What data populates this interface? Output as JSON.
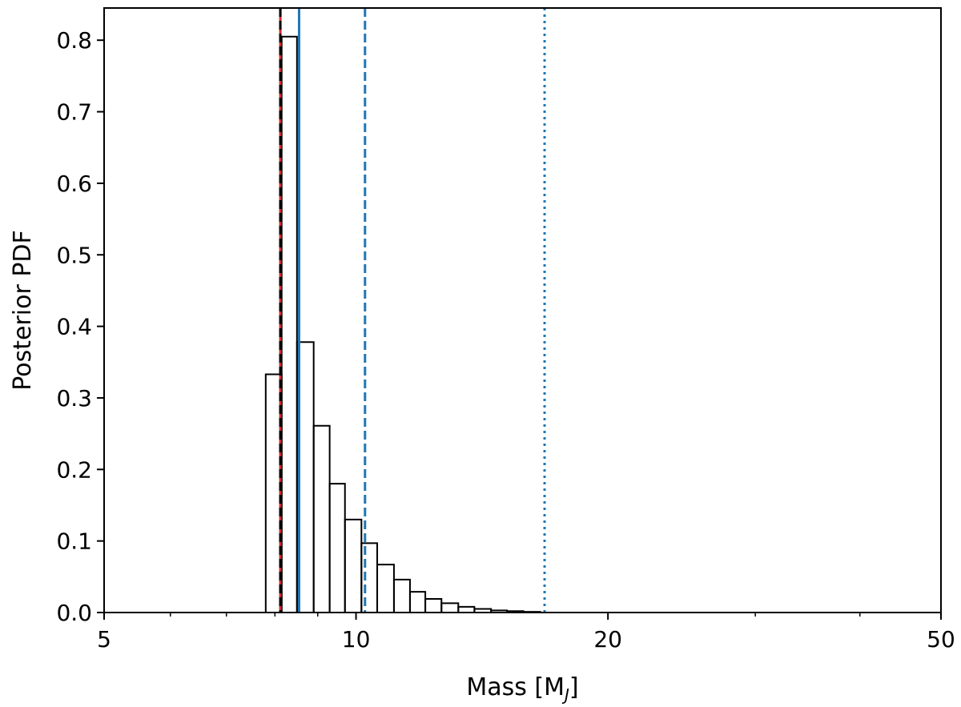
{
  "chart_data": {
    "type": "histogram",
    "title": "",
    "xlabel": "Mass [M",
    "xlabel_sub": "J",
    "xlabel_close": "]",
    "ylabel": "Posterior PDF",
    "xscale": "log",
    "xlim": [
      5,
      50
    ],
    "ylim": [
      0,
      0.845
    ],
    "xticks": [
      {
        "value": 5,
        "label": "5"
      },
      {
        "value": 10,
        "label": "10"
      },
      {
        "value": 20,
        "label": "20"
      },
      {
        "value": 50,
        "label": "50"
      }
    ],
    "yticks": [
      {
        "value": 0.0,
        "label": "0.0"
      },
      {
        "value": 0.1,
        "label": "0.1"
      },
      {
        "value": 0.2,
        "label": "0.2"
      },
      {
        "value": 0.3,
        "label": "0.3"
      },
      {
        "value": 0.4,
        "label": "0.4"
      },
      {
        "value": 0.5,
        "label": "0.5"
      },
      {
        "value": 0.6,
        "label": "0.6"
      },
      {
        "value": 0.7,
        "label": "0.7"
      },
      {
        "value": 0.8,
        "label": "0.8"
      }
    ],
    "bins": {
      "edges": [
        7.8,
        8.15,
        8.5,
        8.9,
        9.3,
        9.7,
        10.15,
        10.6,
        11.1,
        11.6,
        12.1,
        12.65,
        13.25,
        13.85,
        14.5,
        15.15,
        15.85,
        16.6
      ],
      "values": [
        0.333,
        0.805,
        0.378,
        0.261,
        0.18,
        0.13,
        0.097,
        0.067,
        0.046,
        0.029,
        0.019,
        0.013,
        0.008,
        0.005,
        0.003,
        0.002,
        0.001
      ],
      "color": "#000000"
    },
    "vlines": [
      {
        "x": 8.12,
        "color": "#d62728",
        "style": "solid"
      },
      {
        "x": 8.12,
        "color": "#000000",
        "style": "dashed"
      },
      {
        "x": 8.55,
        "color": "#1f77b4",
        "style": "solid"
      },
      {
        "x": 10.25,
        "color": "#1f77b4",
        "style": "dashed"
      },
      {
        "x": 16.8,
        "color": "#1f77b4",
        "style": "dotted"
      }
    ],
    "grid": false
  }
}
